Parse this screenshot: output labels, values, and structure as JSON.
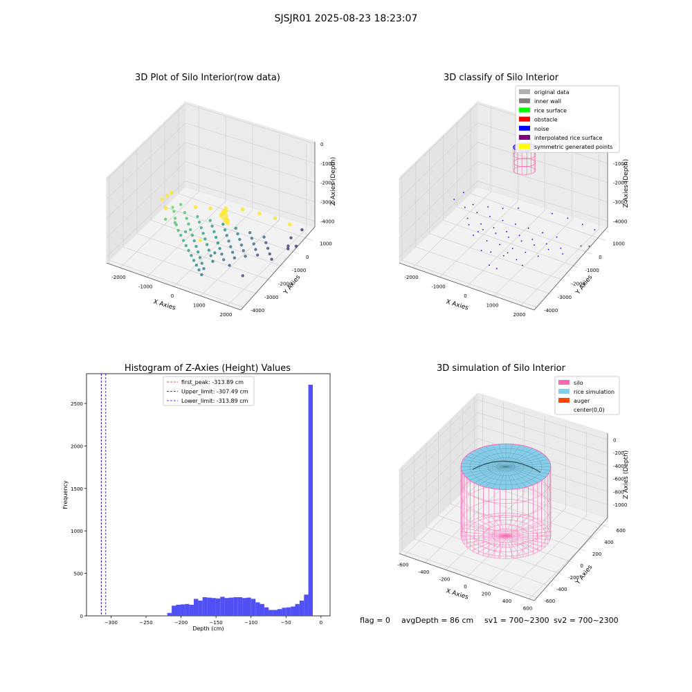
{
  "suptitle": "SJSJR01 2025-08-23 18:23:07",
  "footer": {
    "flag": "flag = 0",
    "avg_depth": "avgDepth = 86 cm",
    "sv1": "sv1 = 700~2300",
    "sv2": "sv2 = 700~2300"
  },
  "chart_data": [
    {
      "type": "scatter",
      "projection": "3d",
      "title": "3D Plot of Silo Interior(row data)",
      "xlabel": "X Axies",
      "ylabel": "Y Axies",
      "zlabel": "Z Axies (Depth)",
      "xticks": [
        "-2000",
        "-1000",
        "0",
        "1000",
        "2000"
      ],
      "yticks": [
        "1000",
        "0",
        "-1000",
        "-2000",
        "-3000",
        "-4000"
      ],
      "zticks": [
        "0",
        "-1000",
        "-2000",
        "-3000",
        "-4000"
      ],
      "xlim": [
        -2500,
        2500
      ],
      "ylim": [
        -4200,
        1500
      ],
      "zlim": [
        -4300,
        100
      ],
      "grid": true,
      "colormap": "viridis",
      "series": [
        {
          "points": [
            [
              -100,
              -500,
              -3150
            ],
            [
              -40,
              -520,
              -3100
            ],
            [
              20,
              -480,
              -3000
            ],
            [
              0,
              -600,
              -3250
            ],
            [
              -120,
              -560,
              -3200
            ],
            [
              60,
              -500,
              -3350
            ],
            [
              90,
              -450,
              -3450
            ],
            [
              -30,
              -420,
              -3550
            ],
            [
              40,
              -380,
              -3650
            ],
            [
              70,
              -520,
              -3150
            ],
            [
              -80,
              -460,
              -3050
            ],
            [
              30,
              -560,
              -2900
            ],
            [
              -2050,
              -300,
              -3900
            ],
            [
              -1900,
              -500,
              -3900
            ],
            [
              -1700,
              -800,
              -3950
            ],
            [
              -1500,
              -1100,
              -3980
            ],
            [
              -1300,
              -1350,
              -4000
            ],
            [
              -1100,
              -1550,
              -4020
            ],
            [
              -900,
              -1750,
              -4050
            ],
            [
              -700,
              -1950,
              -4080
            ],
            [
              -500,
              -2150,
              -4100
            ],
            [
              -300,
              -2350,
              -4120
            ],
            [
              -100,
              -2550,
              -4140
            ],
            [
              100,
              -2750,
              -4150
            ],
            [
              300,
              -2950,
              -4160
            ],
            [
              500,
              -3150,
              -4170
            ],
            [
              -1600,
              -300,
              -3950
            ],
            [
              -1400,
              -550,
              -3980
            ],
            [
              -1200,
              -800,
              -4000
            ],
            [
              -1000,
              -1050,
              -4020
            ],
            [
              -800,
              -1300,
              -4040
            ],
            [
              -600,
              -1550,
              -4060
            ],
            [
              -400,
              -1800,
              -4080
            ],
            [
              -200,
              -2050,
              -4100
            ],
            [
              0,
              -2300,
              -4120
            ],
            [
              200,
              -2550,
              -4140
            ],
            [
              400,
              -2800,
              -4150
            ],
            [
              -1150,
              -250,
              -3970
            ],
            [
              -950,
              -500,
              -3990
            ],
            [
              -750,
              -750,
              -4010
            ],
            [
              -550,
              -1000,
              -4030
            ],
            [
              -350,
              -1250,
              -4050
            ],
            [
              -150,
              -1500,
              -4070
            ],
            [
              50,
              -1750,
              -4090
            ],
            [
              250,
              -2000,
              -4110
            ],
            [
              450,
              -2250,
              -4130
            ],
            [
              -700,
              -200,
              -3990
            ],
            [
              -500,
              -450,
              -4010
            ],
            [
              -300,
              -700,
              -4030
            ],
            [
              -100,
              -950,
              -4050
            ],
            [
              100,
              -1200,
              -4070
            ],
            [
              300,
              -1450,
              -4090
            ],
            [
              500,
              -1700,
              -4110
            ],
            [
              700,
              -1950,
              -4130
            ],
            [
              -250,
              -150,
              -4000
            ],
            [
              -50,
              -400,
              -4020
            ],
            [
              150,
              -650,
              -4040
            ],
            [
              350,
              -900,
              -4060
            ],
            [
              550,
              -1150,
              -4080
            ],
            [
              750,
              -1400,
              -4100
            ],
            [
              950,
              -1650,
              -4120
            ],
            [
              200,
              -100,
              -4020
            ],
            [
              400,
              -350,
              -4040
            ],
            [
              600,
              -600,
              -4060
            ],
            [
              800,
              -850,
              -4080
            ],
            [
              1000,
              -1100,
              -4100
            ],
            [
              1200,
              -1350,
              -4120
            ],
            [
              700,
              -50,
              -4040
            ],
            [
              900,
              -300,
              -4060
            ],
            [
              1100,
              -550,
              -4080
            ],
            [
              1300,
              -800,
              -4100
            ],
            [
              1500,
              -1050,
              -4120
            ],
            [
              1200,
              0,
              -4060
            ],
            [
              1400,
              -250,
              -4080
            ],
            [
              1600,
              -500,
              -4100
            ],
            [
              1800,
              -750,
              -4120
            ],
            [
              2000,
              -1000,
              -4130
            ],
            [
              -1800,
              -200,
              -3700
            ],
            [
              -1300,
              -100,
              -3650
            ],
            [
              -800,
              0,
              -3550
            ],
            [
              -300,
              150,
              -3400
            ],
            [
              250,
              300,
              -3300
            ],
            [
              800,
              450,
              -3350
            ],
            [
              1300,
              600,
              -3450
            ],
            [
              1800,
              700,
              -3600
            ],
            [
              2200,
              800,
              -3750
            ],
            [
              -1500,
              -1200,
              -3800
            ],
            [
              -900,
              -1600,
              -3700
            ],
            [
              -200,
              -1900,
              -3600
            ],
            [
              500,
              -2200,
              -3700
            ],
            [
              1200,
              -2500,
              -3800
            ],
            [
              1800,
              -2700,
              -3900
            ],
            [
              -2300,
              -600,
              -3400
            ],
            [
              -2200,
              -400,
              -3300
            ],
            [
              -2150,
              -200,
              -3250
            ],
            [
              -2000,
              -900,
              -3500
            ],
            [
              -1800,
              -1300,
              -3700
            ],
            [
              2200,
              -200,
              -3900
            ],
            [
              2400,
              0,
              -3950
            ],
            [
              2300,
              -400,
              -3850
            ],
            [
              2100,
              200,
              -3800
            ]
          ]
        }
      ]
    },
    {
      "type": "scatter",
      "projection": "3d",
      "title": "3D classify of Silo Interior",
      "xlabel": "X Axies",
      "ylabel": "Y Axies",
      "zlabel": "Z Axies (Depth)",
      "xticks": [
        "-2000",
        "-1000",
        "0",
        "1000",
        "2000"
      ],
      "yticks": [
        "1000",
        "0",
        "-1000",
        "-2000",
        "-3000",
        "-4000"
      ],
      "zticks": [
        "0",
        "-1000",
        "-2000",
        "-3000",
        "-4000"
      ],
      "xlim": [
        -2500,
        2500
      ],
      "ylim": [
        -4200,
        1500
      ],
      "zlim": [
        -4300,
        100
      ],
      "grid": true,
      "legend_position": "top-right",
      "legend": [
        {
          "label": "original data",
          "color": "#b0b0b0"
        },
        {
          "label": "inner wall",
          "color": "#808080"
        },
        {
          "label": "rice surface",
          "color": "#00ff00"
        },
        {
          "label": "obstacle",
          "color": "#ff0000"
        },
        {
          "label": "noise",
          "color": "#0000ff"
        },
        {
          "label": "interpolated rice surface",
          "color": "#800080"
        },
        {
          "label": "symmetric generated points",
          "color": "#ffff00"
        }
      ],
      "series": [
        {
          "name": "noise",
          "color": "#0000ff",
          "points": [
            [
              -2050,
              -300,
              -3900
            ],
            [
              -1600,
              -300,
              -3950
            ],
            [
              -1150,
              -250,
              -3970
            ],
            [
              -700,
              -200,
              -3990
            ],
            [
              -250,
              -150,
              -4000
            ],
            [
              200,
              -100,
              -4020
            ],
            [
              700,
              -50,
              -4040
            ],
            [
              1200,
              0,
              -4060
            ],
            [
              -1500,
              -1100,
              -3980
            ],
            [
              -1000,
              -1050,
              -4020
            ],
            [
              -550,
              -1000,
              -4030
            ],
            [
              -100,
              -950,
              -4050
            ],
            [
              350,
              -900,
              -4060
            ],
            [
              800,
              -850,
              -4080
            ],
            [
              1300,
              -800,
              -4100
            ],
            [
              1800,
              -750,
              -4120
            ],
            [
              -1100,
              -1550,
              -4020
            ],
            [
              -600,
              -1550,
              -4060
            ],
            [
              -150,
              -1500,
              -4070
            ],
            [
              300,
              -1450,
              -4090
            ],
            [
              750,
              -1400,
              -4100
            ],
            [
              1200,
              -1350,
              -4120
            ],
            [
              -500,
              -2150,
              -4100
            ],
            [
              -200,
              -2050,
              -4100
            ],
            [
              250,
              -2000,
              -4110
            ],
            [
              700,
              -1950,
              -4130
            ],
            [
              100,
              -2750,
              -4150
            ],
            [
              400,
              -2800,
              -4150
            ],
            [
              -2300,
              -600,
              -3400
            ],
            [
              -2150,
              -200,
              -3250
            ],
            [
              -1800,
              -200,
              -3700
            ],
            [
              -1300,
              -100,
              -3650
            ],
            [
              -800,
              0,
              -3550
            ],
            [
              800,
              450,
              -3350
            ],
            [
              1800,
              700,
              -3600
            ],
            [
              2200,
              800,
              -3750
            ],
            [
              -900,
              -1600,
              -3700
            ],
            [
              500,
              -2200,
              -3700
            ],
            [
              1200,
              -2500,
              -3800
            ],
            [
              2200,
              -200,
              -3900
            ],
            [
              2400,
              0,
              -3950
            ],
            [
              -300,
              150,
              -3400
            ],
            [
              1300,
              600,
              -3450
            ],
            [
              -1700,
              -800,
              -3950
            ],
            [
              -1200,
              -800,
              -4000
            ],
            [
              -750,
              -750,
              -4010
            ],
            [
              -300,
              -700,
              -4030
            ],
            [
              150,
              -650,
              -4040
            ],
            [
              600,
              -600,
              -4060
            ],
            [
              1100,
              -550,
              -4080
            ],
            [
              1600,
              -500,
              -4100
            ]
          ]
        }
      ],
      "cylinder": {
        "x": 0,
        "y": 0,
        "radius": 450,
        "z_top": 0,
        "z_bottom": -1200,
        "color": "#ff69b4"
      }
    },
    {
      "type": "bar",
      "title": "Histogram of Z-Axies (Height) Values",
      "xlabel": "Depth (cm)",
      "ylabel": "Frequency",
      "xlim": [
        -335,
        13
      ],
      "ylim": [
        0,
        2850
      ],
      "xticks": [
        -300,
        -250,
        -200,
        -150,
        -100,
        -50,
        0
      ],
      "yticks": [
        0,
        500,
        1000,
        1500,
        2000,
        2500
      ],
      "bin_width": 6.3,
      "bin_starts": [
        -225.9,
        -219.6,
        -213.3,
        -207.0,
        -200.7,
        -194.4,
        -188.1,
        -181.8,
        -175.5,
        -169.2,
        -162.9,
        -156.6,
        -150.3,
        -144.0,
        -137.7,
        -131.4,
        -125.1,
        -118.8,
        -112.5,
        -106.2,
        -99.9,
        -93.6,
        -87.3,
        -81.0,
        -74.7,
        -68.4,
        -62.1,
        -55.8,
        -49.5,
        -43.2,
        -36.9,
        -30.6,
        -24.3,
        -18.0,
        -11.7,
        -5.4
      ],
      "values": [
        5,
        35,
        120,
        130,
        135,
        140,
        130,
        200,
        180,
        220,
        215,
        210,
        205,
        225,
        210,
        215,
        220,
        220,
        210,
        215,
        200,
        160,
        140,
        100,
        70,
        70,
        80,
        95,
        100,
        110,
        140,
        180,
        250,
        2720,
        0,
        0
      ],
      "color": "#5050f5",
      "vlines": [
        {
          "label": "first_peak: -313.89 cm",
          "x": -313.89,
          "color": "#ff0000"
        },
        {
          "label": "Upper_limit: -307.49 cm",
          "x": -307.49,
          "color": "#00008b"
        },
        {
          "label": "Lower_limit: -313.89 cm",
          "x": -313.89,
          "color": "#0000ff"
        }
      ],
      "legend_position": "top-center"
    },
    {
      "type": "surface",
      "projection": "3d",
      "title": "3D simulation of Silo Interior",
      "xlabel": "X Axies",
      "ylabel": "Y Axies",
      "zlabel": "Z Axies (Depth)",
      "xticks": [
        "-600",
        "-400",
        "-200",
        "0",
        "200",
        "400",
        "600"
      ],
      "yticks": [
        "600",
        "400",
        "200",
        "0",
        "-200",
        "-400",
        "-600"
      ],
      "zticks": [
        "0",
        "-200",
        "-400",
        "-600",
        "-800",
        "-1000"
      ],
      "xlim": [
        -650,
        650
      ],
      "ylim": [
        -650,
        650
      ],
      "zlim": [
        -1200,
        100
      ],
      "grid": true,
      "legend_position": "top-right",
      "legend": [
        {
          "label": "silo",
          "color": "#ff69b4"
        },
        {
          "label": "rice simulation",
          "color": "#87ceeb"
        },
        {
          "label": "auger",
          "color": "#ff4500"
        },
        {
          "label": "center(0,0)",
          "color": "#ffffff"
        }
      ],
      "silo": {
        "radius": 500,
        "z_top": -86,
        "z_bottom": -1150
      },
      "rice_surface_depth": -86
    }
  ]
}
